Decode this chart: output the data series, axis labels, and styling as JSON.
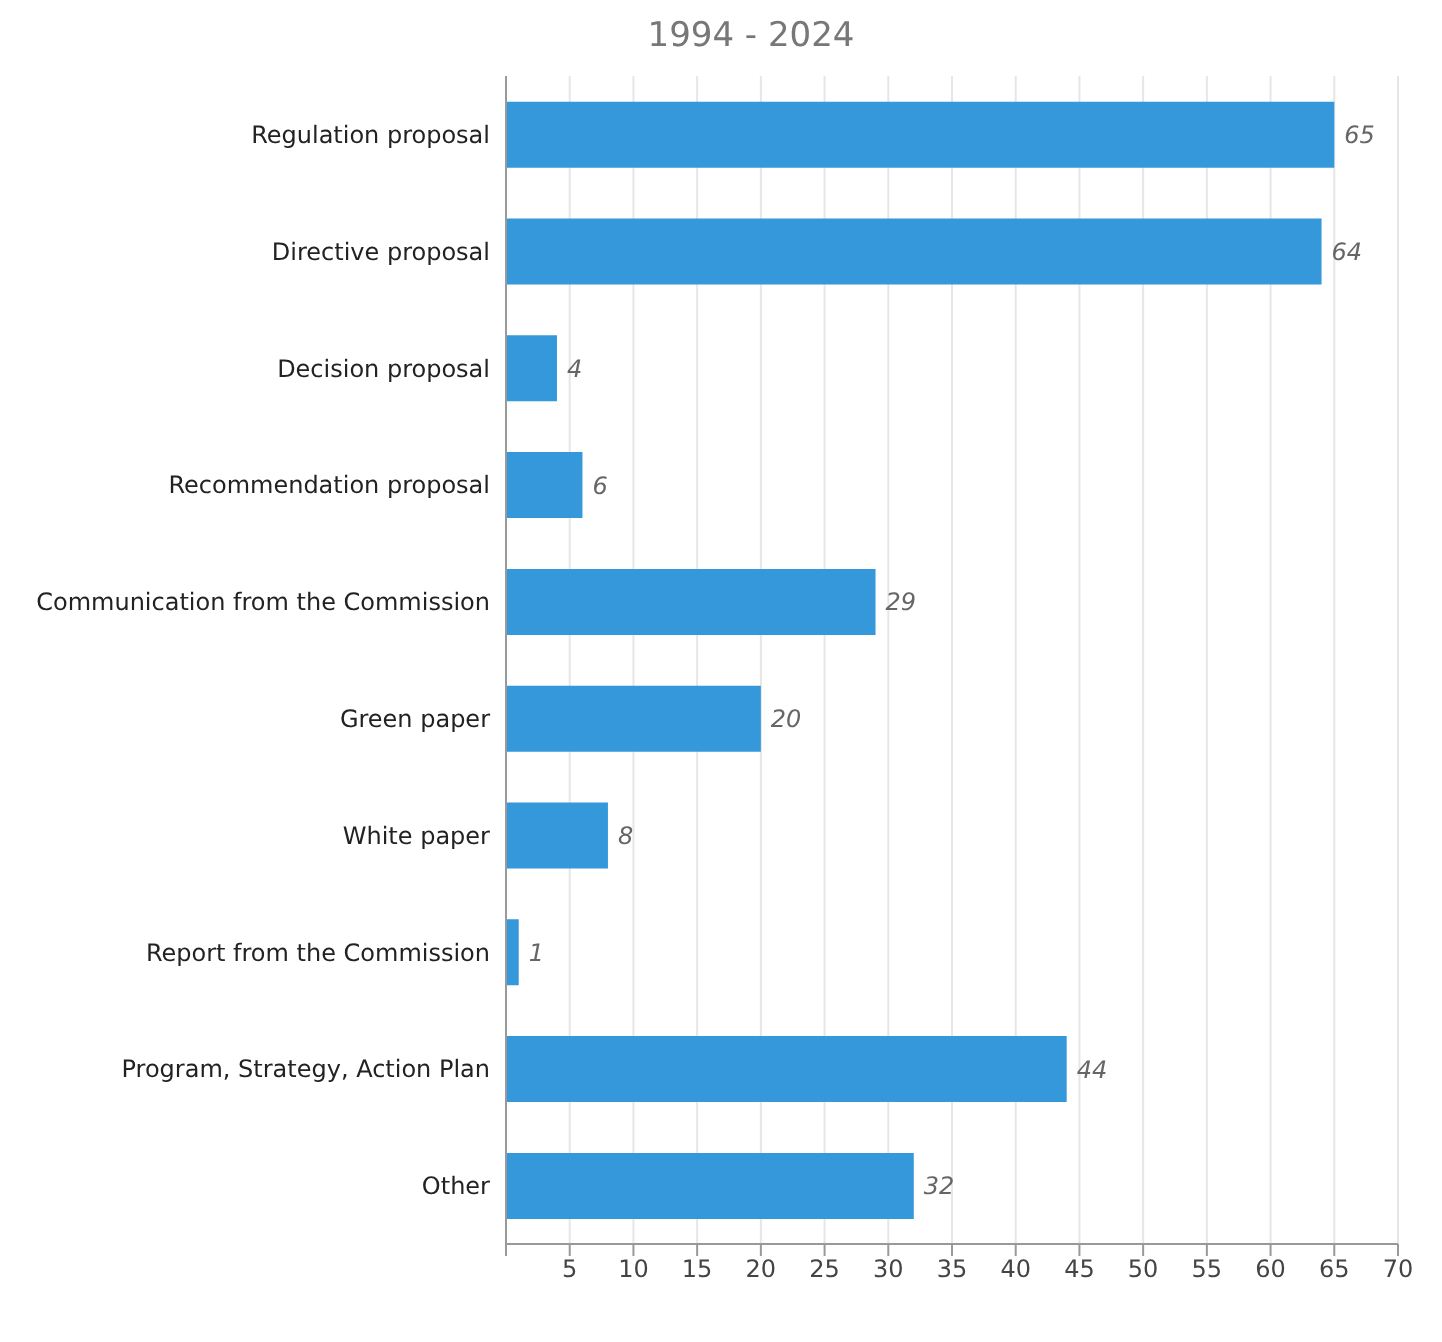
{
  "chart_data": {
    "type": "bar",
    "orientation": "horizontal",
    "title": "1994 - 2024",
    "categories": [
      "Regulation proposal",
      "Directive proposal",
      "Decision proposal",
      "Recommendation proposal",
      "Communication from the Commission",
      "Green paper",
      "White paper",
      "Report from the Commission",
      "Program, Strategy, Action Plan",
      "Other"
    ],
    "values": [
      65,
      64,
      4,
      6,
      29,
      20,
      8,
      1,
      44,
      32
    ],
    "color": "#3498db",
    "xlim": [
      0,
      70
    ],
    "xticks": [
      {
        "value": 0,
        "label": null
      },
      5,
      10,
      15,
      20,
      25,
      30,
      35,
      40,
      45,
      50,
      55,
      60,
      65,
      70
    ],
    "grid": "x",
    "data_labels": true
  }
}
